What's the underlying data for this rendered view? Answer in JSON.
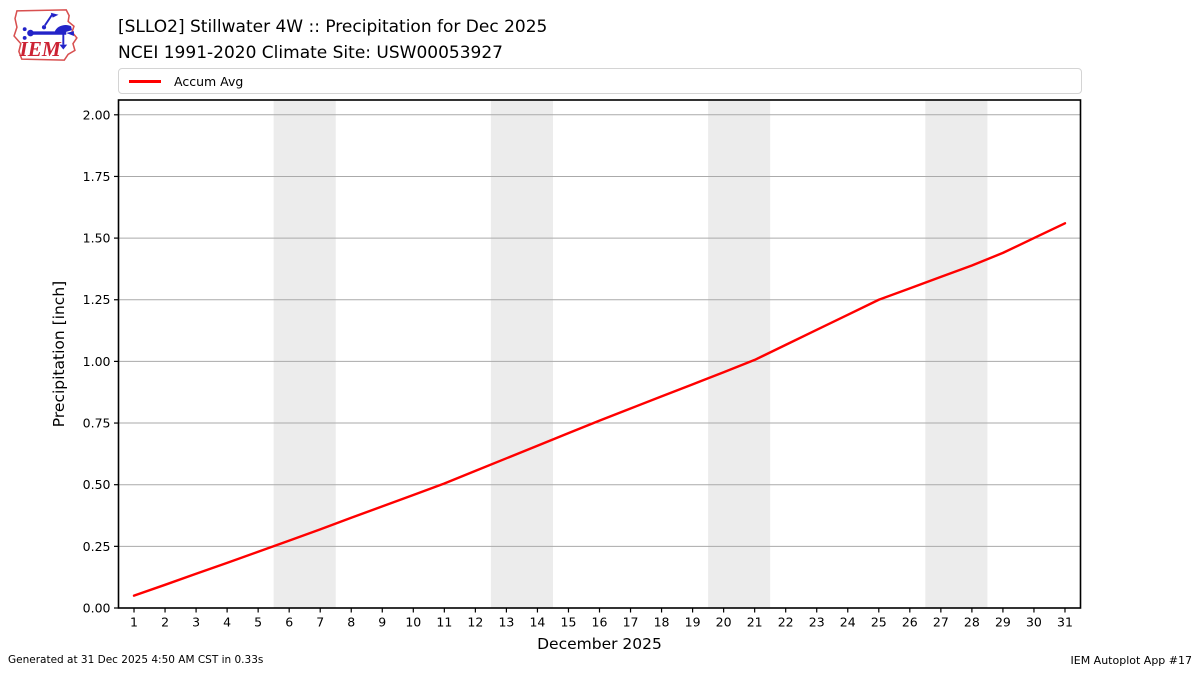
{
  "header": {
    "title_line1": "[SLLO2] Stillwater 4W :: Precipitation for Dec 2025",
    "title_line2": "NCEI 1991-2020 Climate Site: USW00053927",
    "logo_text": "IEM"
  },
  "legend": {
    "items": [
      {
        "label": "Accum Avg",
        "color": "#ff0000"
      }
    ]
  },
  "footer": {
    "left": "Generated at 31 Dec 2025 4:50 AM CST in 0.33s",
    "right": "IEM Autoplot App #17"
  },
  "chart_data": {
    "type": "line",
    "title": "[SLLO2] Stillwater 4W :: Precipitation for Dec 2025 / NCEI 1991-2020 Climate Site: USW00053927",
    "xlabel": "December 2025",
    "ylabel": "Precipitation [inch]",
    "xlim": [
      0.5,
      31.5
    ],
    "ylim": [
      0,
      2.06
    ],
    "grid": true,
    "legend_position": "top",
    "x": [
      1,
      2,
      3,
      4,
      5,
      6,
      7,
      8,
      9,
      10,
      11,
      12,
      13,
      14,
      15,
      16,
      17,
      18,
      19,
      20,
      21,
      22,
      23,
      24,
      25,
      26,
      27,
      28,
      29,
      30,
      31
    ],
    "series": [
      {
        "name": "Accum Avg",
        "color": "#ff0000",
        "values": [
          0.05,
          0.094,
          0.139,
          0.183,
          0.228,
          0.273,
          0.319,
          0.366,
          0.412,
          0.458,
          0.505,
          0.556,
          0.607,
          0.658,
          0.709,
          0.76,
          0.809,
          0.858,
          0.907,
          0.956,
          1.006,
          1.067,
          1.128,
          1.189,
          1.25,
          1.296,
          1.343,
          1.389,
          1.44,
          1.5,
          1.56
        ]
      }
    ],
    "yticks": [
      "0.00",
      "0.25",
      "0.50",
      "0.75",
      "1.00",
      "1.25",
      "1.50",
      "1.75",
      "2.00"
    ],
    "weekend_bands": [
      [
        5.5,
        7.5
      ],
      [
        12.5,
        14.5
      ],
      [
        19.5,
        21.5
      ],
      [
        26.5,
        28.5
      ]
    ],
    "colors": {
      "grid": "#aaaaaa",
      "band": "#ececec",
      "frame": "#000000",
      "tick_text": "#000000"
    }
  }
}
